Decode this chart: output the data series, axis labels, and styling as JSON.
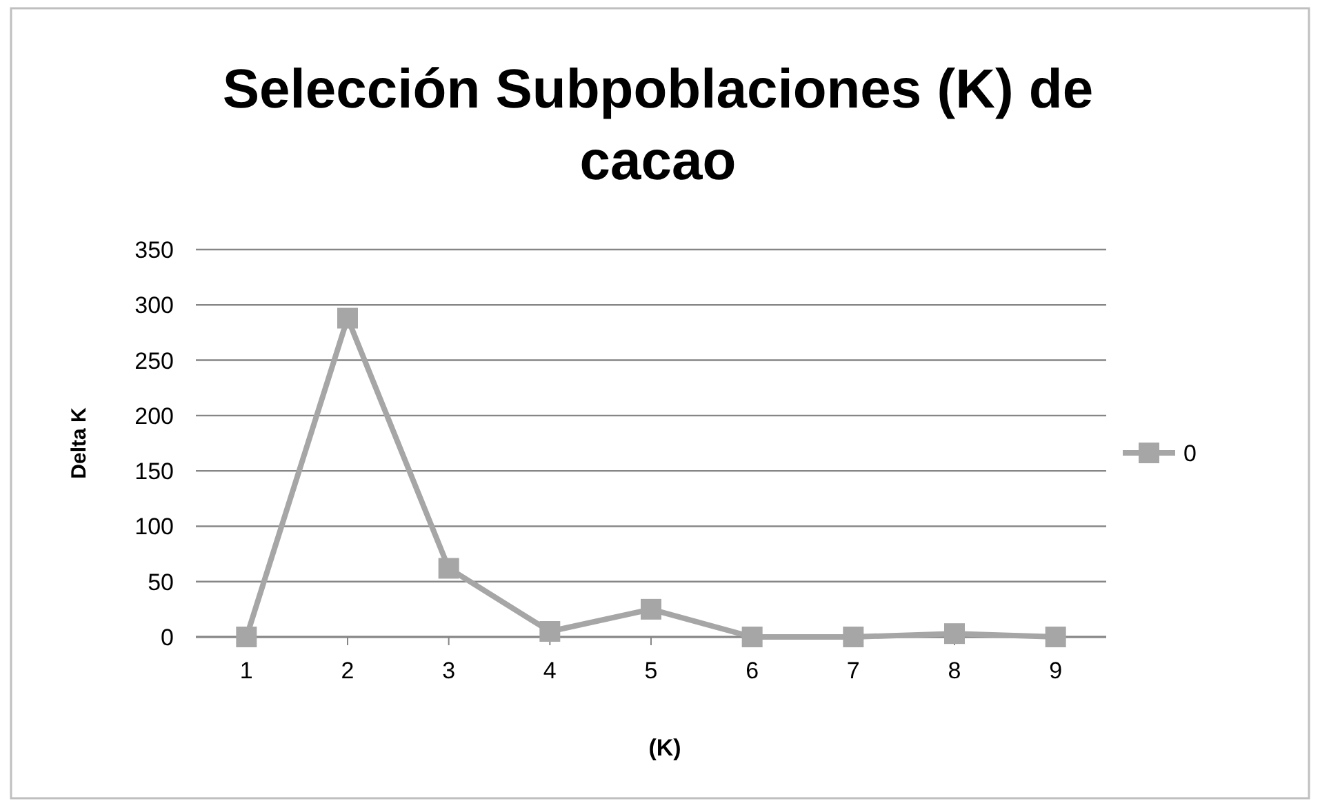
{
  "chart_data": {
    "type": "line",
    "title": "Selección Subpoblaciones (K) de cacao",
    "xlabel": "(K)",
    "ylabel": "Delta K",
    "categories": [
      "1",
      "2",
      "3",
      "4",
      "5",
      "6",
      "7",
      "8",
      "9"
    ],
    "series": [
      {
        "name": "0",
        "color": "#a6a6a6",
        "values": [
          0,
          288,
          62,
          5,
          25,
          0,
          0,
          3,
          0
        ]
      }
    ],
    "ylim": [
      0,
      350
    ],
    "yticks": [
      0,
      50,
      100,
      150,
      200,
      250,
      300,
      350
    ],
    "grid": "y",
    "legend": "right",
    "marker": "square",
    "line_style": "solid"
  }
}
